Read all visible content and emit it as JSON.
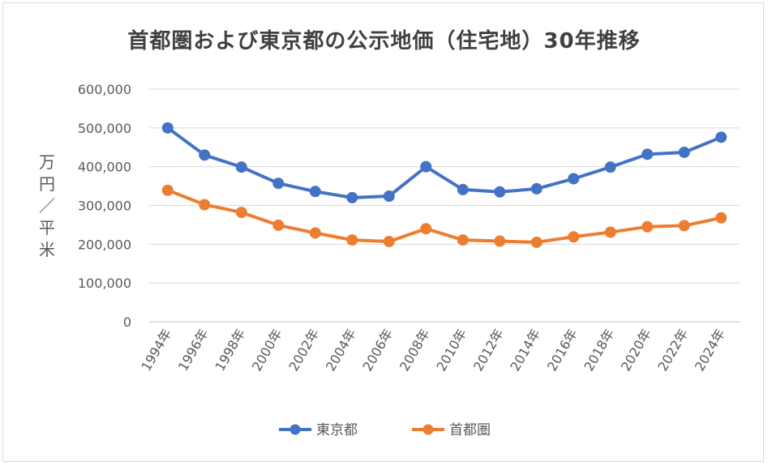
{
  "chart_data": {
    "type": "line",
    "title": "首都圏および東京都の公示地価（住宅地）30年推移",
    "ylabel": "万円／平米",
    "xlabel": "",
    "categories": [
      "1994年",
      "1996年",
      "1998年",
      "2000年",
      "2002年",
      "2004年",
      "2006年",
      "2008年",
      "2010年",
      "2012年",
      "2014年",
      "2016年",
      "2018年",
      "2020年",
      "2022年",
      "2024年"
    ],
    "yticks": [
      "0",
      "100,000",
      "200,000",
      "300,000",
      "400,000",
      "500,000",
      "600,000"
    ],
    "ylim": [
      0,
      600000
    ],
    "grid": true,
    "legend_position": "bottom",
    "series": [
      {
        "name": "東京都",
        "color": "#4472C4",
        "values": [
          500000,
          430000,
          399000,
          357000,
          336000,
          320000,
          324000,
          400000,
          341000,
          335000,
          343000,
          369000,
          399000,
          432000,
          437000,
          476000
        ]
      },
      {
        "name": "首都圏",
        "color": "#ED7D31",
        "values": [
          339000,
          302000,
          282000,
          249000,
          229000,
          211000,
          207000,
          240000,
          211000,
          208000,
          205000,
          219000,
          231000,
          245000,
          248000,
          268000
        ]
      }
    ]
  }
}
